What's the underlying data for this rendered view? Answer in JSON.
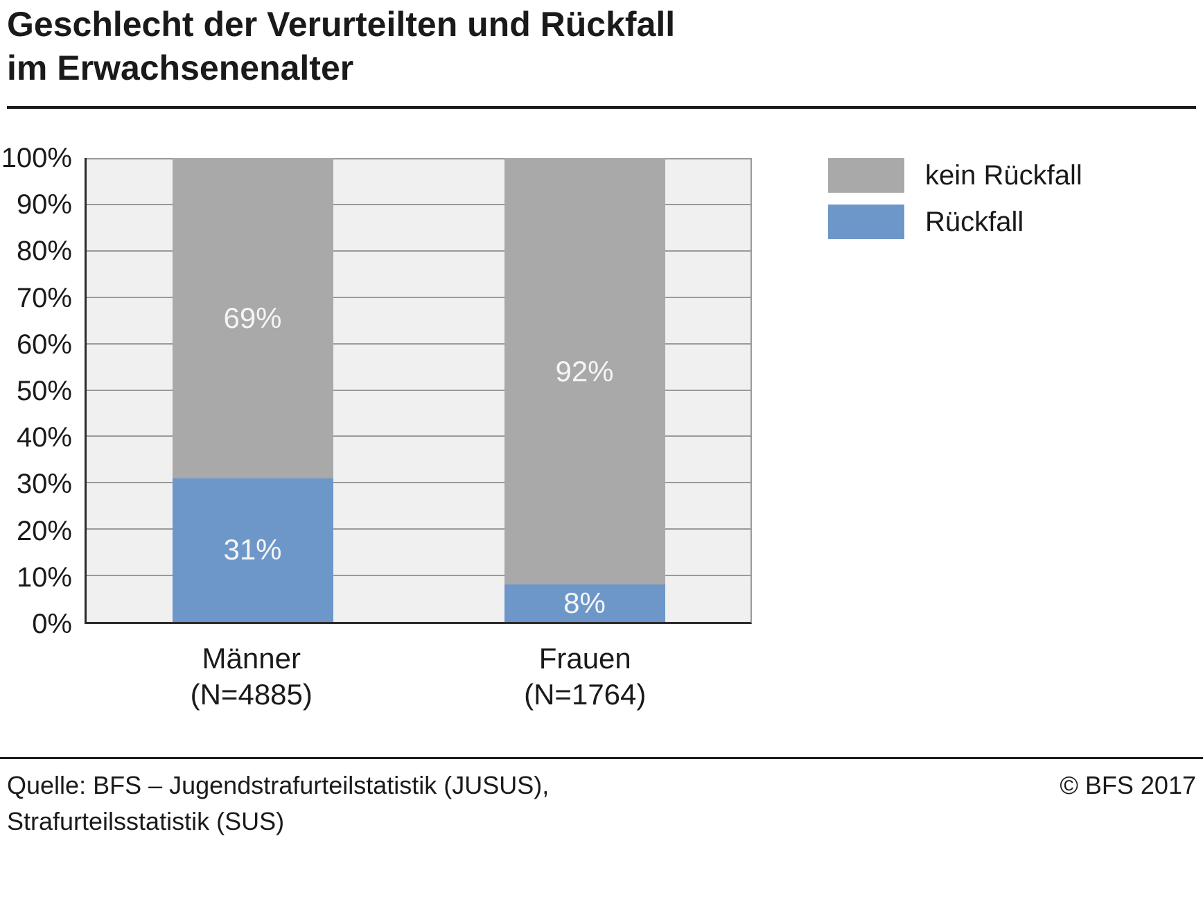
{
  "title": {
    "line1": "Geschlecht der Verurteilten und Rückfall",
    "line2": "im Erwachsenenalter"
  },
  "chart_data": {
    "type": "bar",
    "stacked": true,
    "orientation": "vertical",
    "title": "Geschlecht der Verurteilten und Rückfall im Erwachsenenalter",
    "categories": [
      "Männer",
      "Frauen"
    ],
    "category_counts": [
      "(N=4885)",
      "(N=1764)"
    ],
    "series": [
      {
        "name": "Rückfall",
        "color": "#6d97c8",
        "values": [
          31,
          8
        ],
        "labels": [
          "31%",
          "8%"
        ]
      },
      {
        "name": "kein Rückfall",
        "color": "#a9a9a9",
        "values": [
          69,
          92
        ],
        "labels": [
          "69%",
          "92%"
        ]
      }
    ],
    "ylim": [
      0,
      100
    ],
    "ytick_labels": [
      "100%",
      "90%",
      "80%",
      "70%",
      "60%",
      "50%",
      "40%",
      "30%",
      "20%",
      "10%",
      "0%"
    ],
    "grid": true,
    "legend_position": "top-right"
  },
  "legend": {
    "items": [
      {
        "label": "kein Rückfall",
        "color": "#a9a9a9"
      },
      {
        "label": "Rückfall",
        "color": "#6d97c8"
      }
    ]
  },
  "footer": {
    "source_line1": "Quelle: BFS – Jugendstrafurteilstatistik (JUSUS),",
    "source_line2": "Strafurteilsstatistik (SUS)",
    "copyright": "© BFS 2017"
  },
  "colors": {
    "bar_blue": "#6d97c8",
    "bar_gray": "#a9a9a9",
    "plot_background": "#f0f0f0",
    "gridline": "#9a9a9a",
    "axis": "#2b2b2b",
    "text": "#1a1a1a",
    "bar_label_text": "#f5f5f5"
  }
}
